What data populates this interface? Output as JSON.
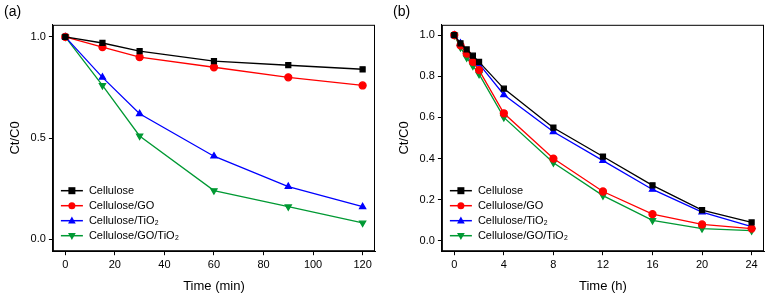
{
  "chart_data": [
    {
      "type": "line",
      "title": "(a)",
      "x_label": "Time (min)",
      "y_label": "Ct/C0",
      "x": [
        0,
        15,
        30,
        60,
        90,
        120
      ],
      "series": [
        {
          "name": "Cellulose",
          "color": "#000000",
          "marker": "square",
          "values": [
            1.0,
            0.97,
            0.93,
            0.88,
            0.86,
            0.84
          ]
        },
        {
          "name": "Cellulose/GO",
          "color": "#ff0000",
          "marker": "circle",
          "values": [
            1.0,
            0.95,
            0.9,
            0.85,
            0.8,
            0.76
          ]
        },
        {
          "name": "Cellulose/TiO₂",
          "color": "#0000ff",
          "marker": "triangle",
          "values": [
            1.0,
            0.8,
            0.62,
            0.41,
            0.26,
            0.16
          ]
        },
        {
          "name": "Cellulose/GO/TiO₂",
          "color": "#009933",
          "marker": "triangle-down",
          "values": [
            1.0,
            0.76,
            0.51,
            0.24,
            0.16,
            0.08
          ]
        }
      ],
      "xlim": [
        -5,
        125
      ],
      "xticks": [
        0,
        20,
        40,
        60,
        80,
        100,
        120
      ],
      "ylim": [
        -0.06,
        1.06
      ],
      "yticks": [
        {
          "value": 0,
          "label": "0.0"
        },
        {
          "value": 0.5,
          "label": "0.5"
        },
        {
          "value": 1,
          "label": "1.0"
        }
      ],
      "grid": false,
      "legend": "lower left"
    },
    {
      "type": "line",
      "title": "(b)",
      "x_label": "Time (h)",
      "y_label": "Ct/C0",
      "x": [
        0,
        0.5,
        1,
        1.5,
        2,
        4,
        8,
        12,
        16,
        20,
        24
      ],
      "series": [
        {
          "name": "Cellulose",
          "color": "#000000",
          "marker": "square",
          "values": [
            1.0,
            0.96,
            0.93,
            0.9,
            0.87,
            0.74,
            0.55,
            0.41,
            0.27,
            0.15,
            0.09
          ]
        },
        {
          "name": "Cellulose/GO",
          "color": "#ff0000",
          "marker": "circle",
          "values": [
            1.0,
            0.95,
            0.91,
            0.87,
            0.83,
            0.62,
            0.4,
            0.24,
            0.13,
            0.08,
            0.06
          ]
        },
        {
          "name": "Cellulose/TiO₂",
          "color": "#0000ff",
          "marker": "triangle",
          "values": [
            1.0,
            0.96,
            0.92,
            0.89,
            0.86,
            0.71,
            0.53,
            0.39,
            0.25,
            0.14,
            0.07
          ]
        },
        {
          "name": "Cellulose/GO/TiO₂",
          "color": "#009933",
          "marker": "triangle-down",
          "values": [
            1.0,
            0.94,
            0.89,
            0.85,
            0.81,
            0.6,
            0.38,
            0.22,
            0.1,
            0.06,
            0.05
          ]
        }
      ],
      "xlim": [
        -1,
        25
      ],
      "xticks": [
        0,
        4,
        8,
        12,
        16,
        20,
        24
      ],
      "ylim": [
        -0.05,
        1.05
      ],
      "yticks": [
        {
          "value": 0,
          "label": "0.0"
        },
        {
          "value": 0.2,
          "label": "0.2"
        },
        {
          "value": 0.4,
          "label": "0.4"
        },
        {
          "value": 0.6,
          "label": "0.6"
        },
        {
          "value": 0.8,
          "label": "0.8"
        },
        {
          "value": 1,
          "label": "1.0"
        }
      ],
      "grid": false,
      "legend": "lower left"
    }
  ]
}
